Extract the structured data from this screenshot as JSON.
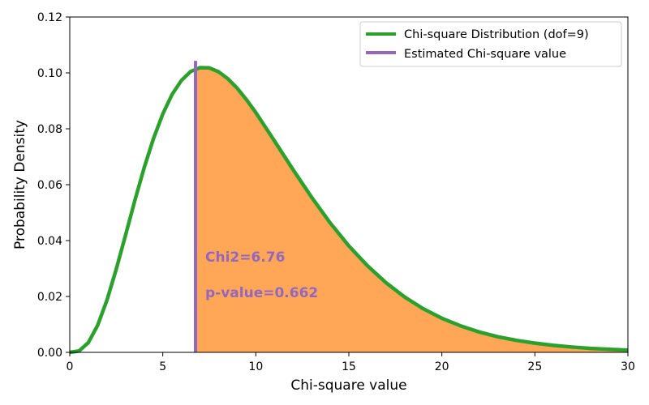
{
  "chart_data": {
    "type": "area",
    "xlabel": "Chi-square value",
    "ylabel": "Probability Density",
    "xlim": [
      0,
      30
    ],
    "ylim": [
      0,
      0.12
    ],
    "xticks": [
      0,
      5,
      10,
      15,
      20,
      25,
      30
    ],
    "xtick_labels": [
      "0",
      "5",
      "10",
      "15",
      "20",
      "25",
      "30"
    ],
    "yticks": [
      0,
      0.02,
      0.04,
      0.06,
      0.08,
      0.1,
      0.12
    ],
    "ytick_labels": [
      "0.00",
      "0.02",
      "0.04",
      "0.06",
      "0.08",
      "0.10",
      "0.12"
    ],
    "dof": 9,
    "chi2_value": 6.76,
    "series": [
      {
        "name": "Chi-square Distribution (dof=9)",
        "color": "#2ca02c",
        "x": [
          0,
          0.5,
          1,
          1.5,
          2,
          2.5,
          3,
          3.5,
          4,
          4.5,
          5,
          5.5,
          6,
          6.5,
          7,
          7.5,
          8,
          8.5,
          9,
          9.5,
          10,
          11,
          12,
          13,
          14,
          15,
          16,
          17,
          18,
          19,
          20,
          21,
          22,
          23,
          24,
          25,
          26,
          27,
          28,
          29,
          30
        ],
        "y": [
          0,
          0.0005,
          0.0035,
          0.0097,
          0.0187,
          0.0298,
          0.042,
          0.0544,
          0.0661,
          0.0765,
          0.0853,
          0.0923,
          0.0973,
          0.1005,
          0.1019,
          0.1018,
          0.1004,
          0.0979,
          0.0945,
          0.0904,
          0.0858,
          0.0757,
          0.0654,
          0.0555,
          0.0463,
          0.0381,
          0.031,
          0.0249,
          0.0198,
          0.0156,
          0.0122,
          0.0095,
          0.0073,
          0.0056,
          0.0043,
          0.0033,
          0.0025,
          0.0019,
          0.0014,
          0.0011,
          0.0008
        ]
      },
      {
        "name": "Estimated Chi-square value",
        "color": "#9467bd",
        "x": [
          6.76,
          6.76
        ],
        "y": [
          0,
          0.1043
        ]
      }
    ],
    "shaded_region": {
      "x_from": 6.76,
      "x_to": 30,
      "color": "#ffa657"
    },
    "annotations": [
      "Chi2=6.76",
      "p-value=0.662"
    ],
    "annotation_color": "#9467bd",
    "legend_position": "top-right"
  }
}
